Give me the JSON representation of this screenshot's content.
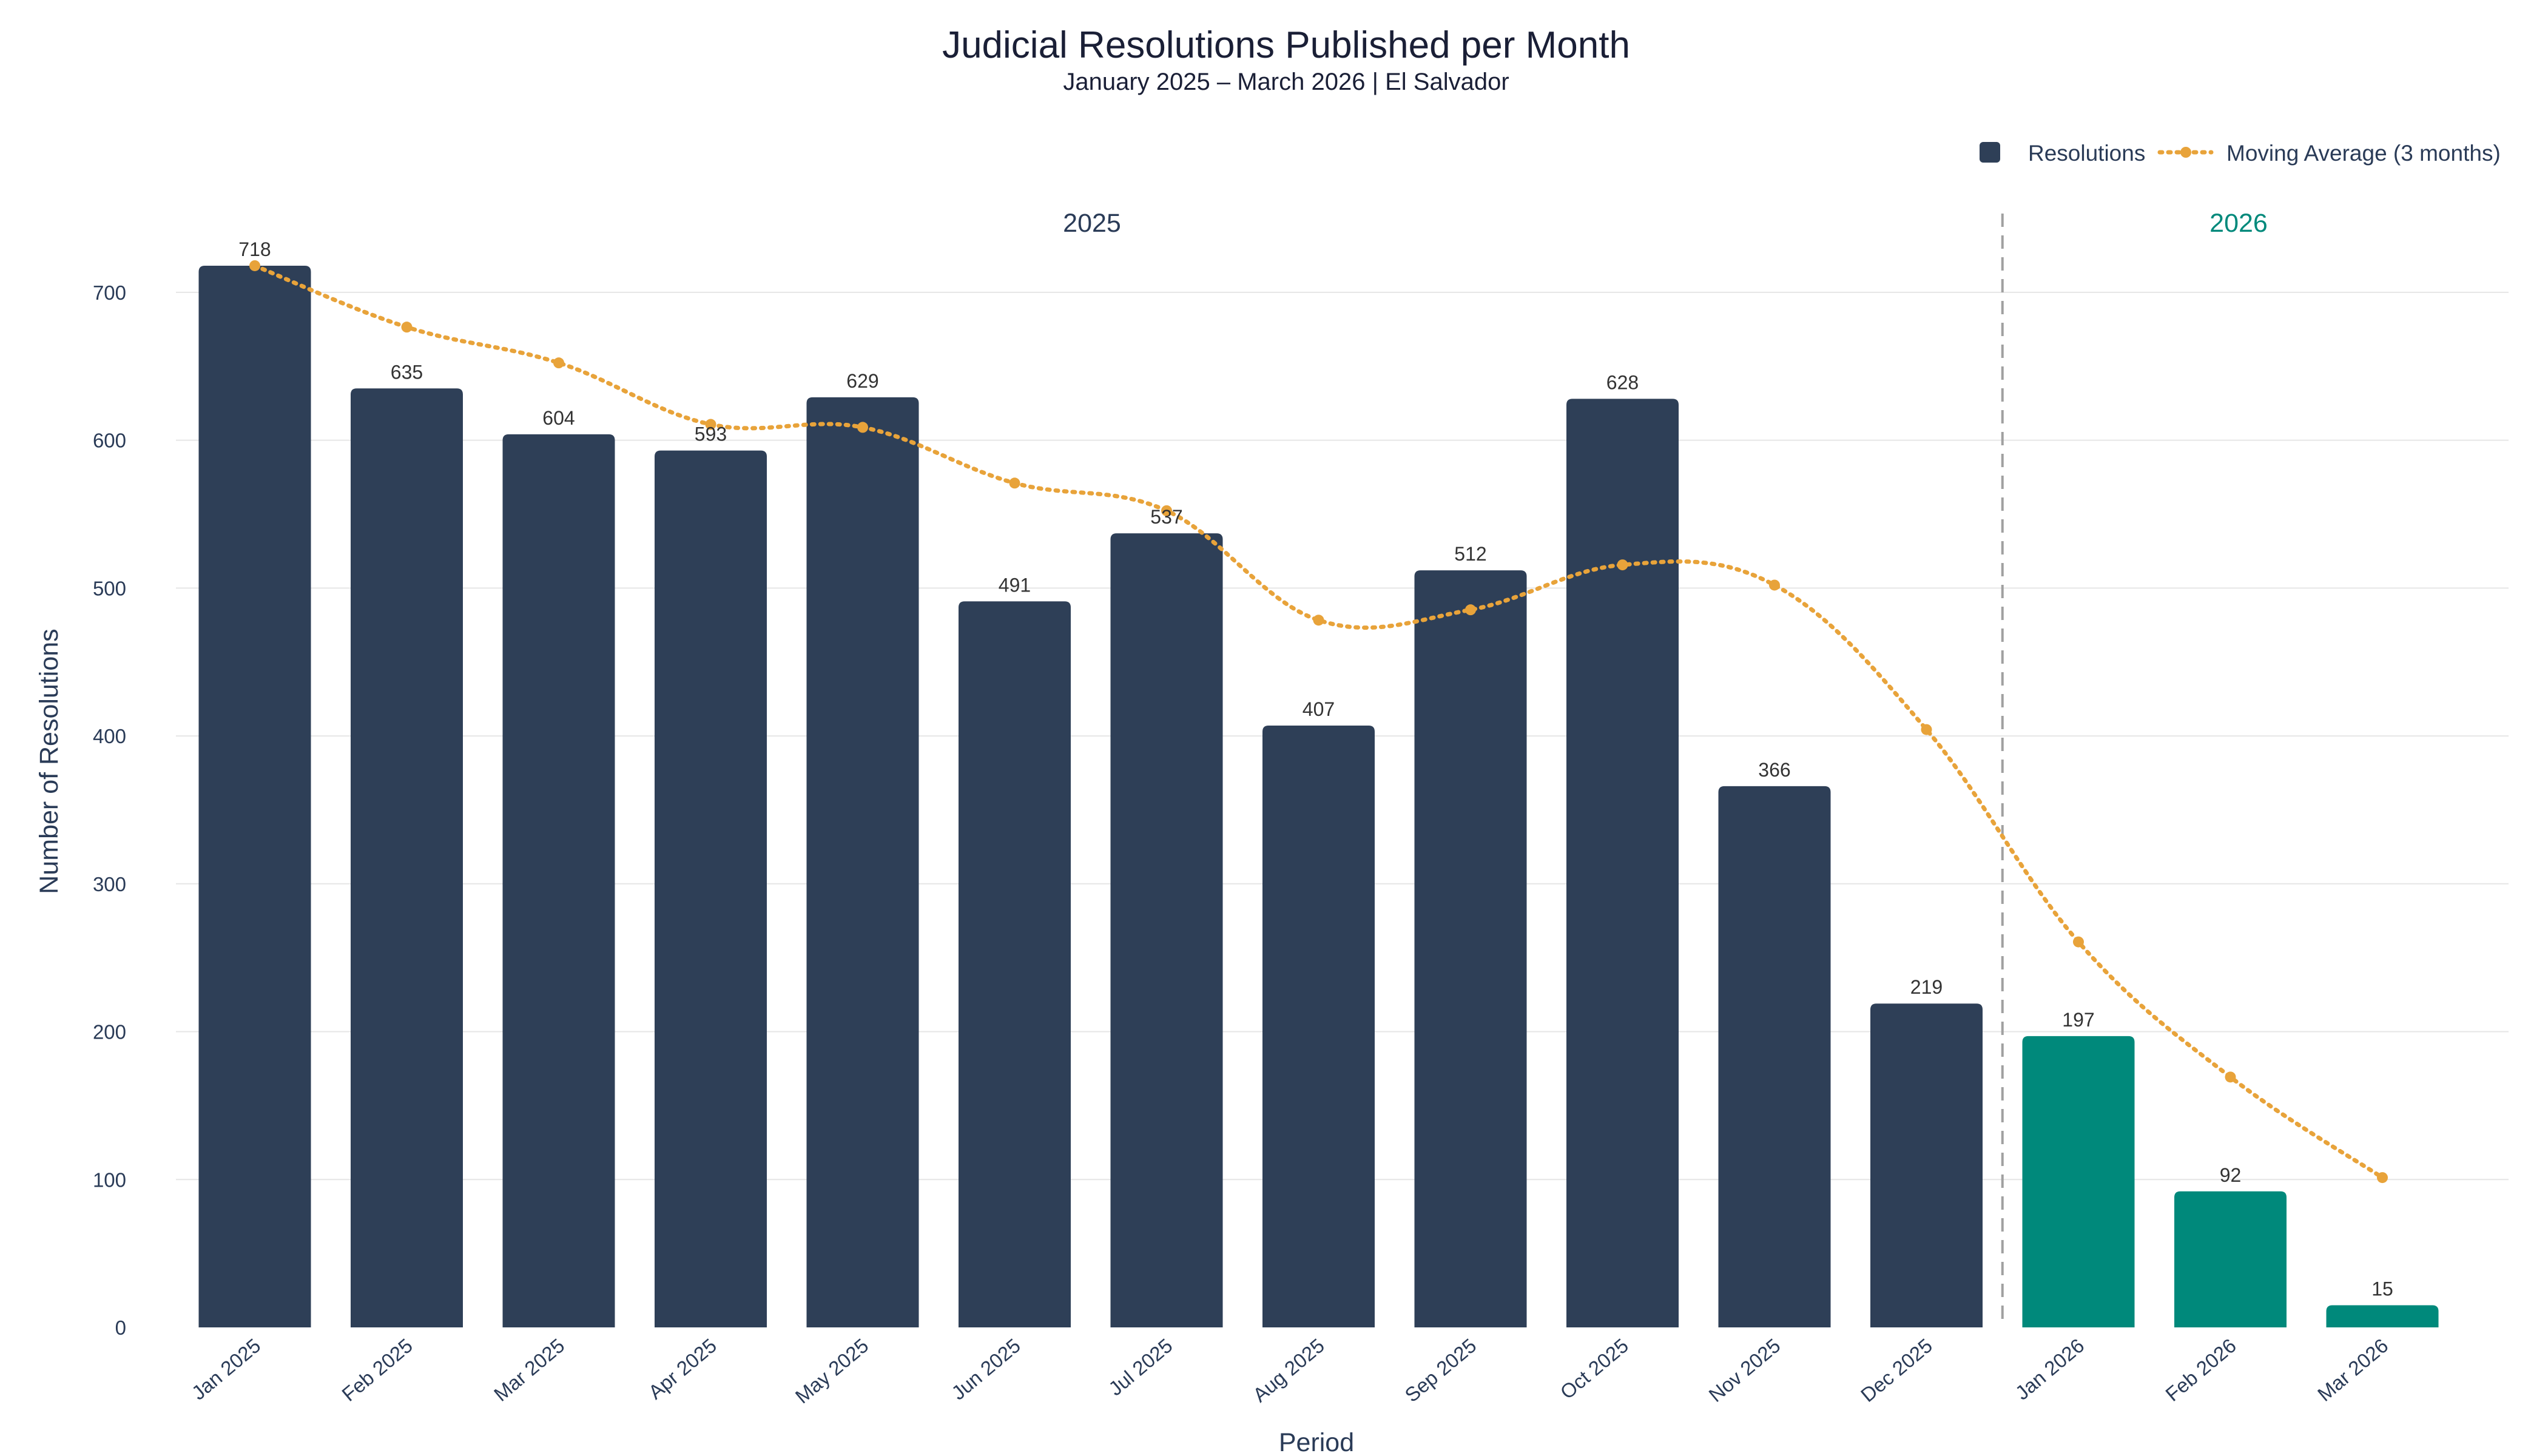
{
  "chart_data": {
    "type": "bar",
    "title": "Judicial Resolutions Published per Month",
    "subtitle": "January 2025 – March 2026 | El Salvador",
    "xlabel": "Period",
    "ylabel": "Number of Resolutions",
    "ylim": [
      0,
      750
    ],
    "yticks": [
      0,
      100,
      200,
      300,
      400,
      500,
      600,
      700
    ],
    "grid": true,
    "legend_position": "top-right",
    "categories": [
      "Jan 2025",
      "Feb 2025",
      "Mar 2025",
      "Apr 2025",
      "May 2025",
      "Jun 2025",
      "Jul 2025",
      "Aug 2025",
      "Sep 2025",
      "Oct 2025",
      "Nov 2025",
      "Dec 2025",
      "Jan 2026",
      "Feb 2026",
      "Mar 2026"
    ],
    "series": [
      {
        "name": "Resolutions",
        "type": "bar",
        "values": [
          718,
          635,
          604,
          593,
          629,
          491,
          537,
          407,
          512,
          628,
          366,
          219,
          197,
          92,
          15
        ],
        "colors": {
          "2025": "#2e3f57",
          "2026": "#00897b"
        }
      },
      {
        "name": "Moving Average (3 months)",
        "type": "line",
        "style": "dotted",
        "color": "#e8a33a",
        "values": [
          718,
          676.5,
          652.3,
          610.7,
          608.7,
          571,
          552.3,
          478.3,
          485.3,
          515.7,
          502,
          404.3,
          260.7,
          169.3,
          101.3
        ]
      }
    ],
    "year_groups": [
      {
        "label": "2025",
        "start": 0,
        "end": 11,
        "color": "#2a3b57"
      },
      {
        "label": "2026",
        "start": 12,
        "end": 14,
        "color": "#00897b"
      }
    ],
    "separator_after_index": 11
  }
}
